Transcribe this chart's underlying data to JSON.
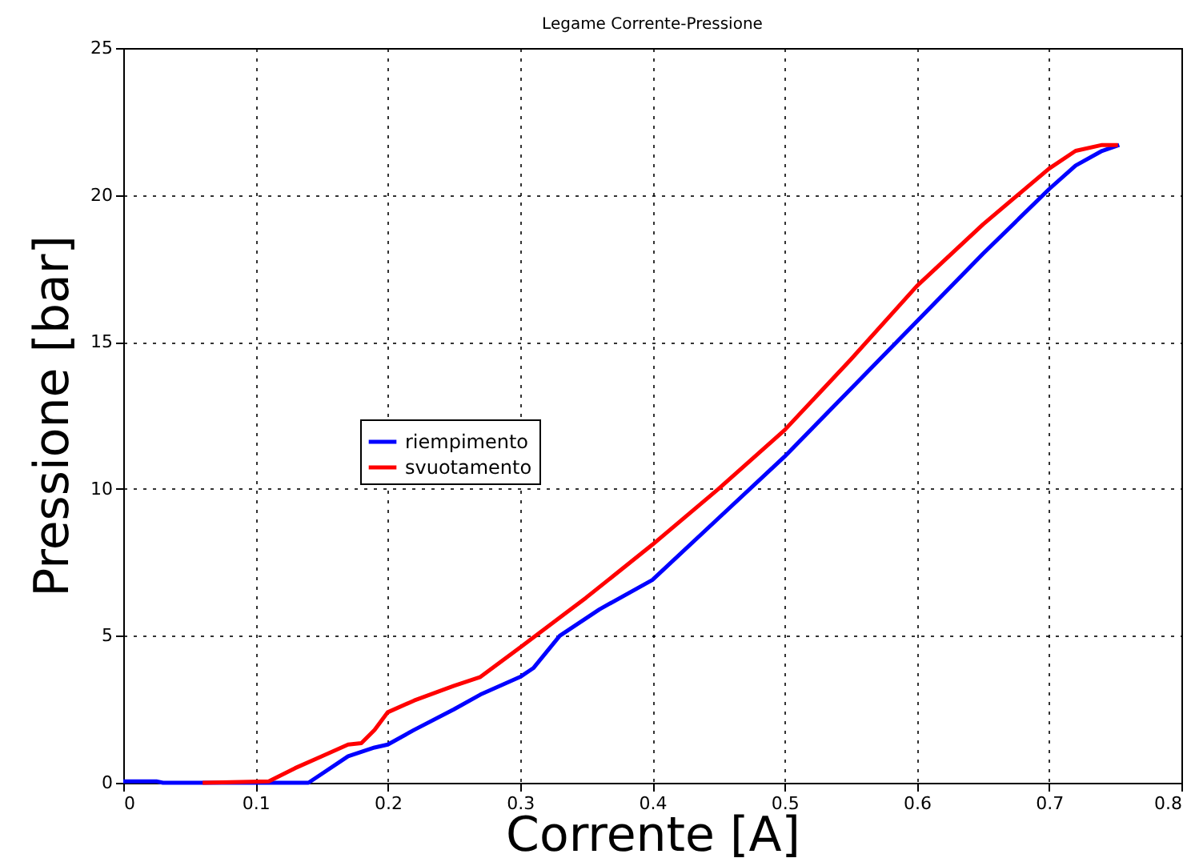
{
  "chart_data": {
    "type": "line",
    "title": "Legame Corrente-Pressione",
    "xlabel": "Corrente [A]",
    "ylabel": "Pressione [bar]",
    "xlim": [
      0,
      0.8
    ],
    "xticks": [
      0,
      0.1,
      0.2,
      0.3,
      0.4,
      0.5,
      0.6,
      0.7,
      0.8
    ],
    "ylim": [
      0,
      25
    ],
    "yticks": [
      0,
      5,
      10,
      15,
      20,
      25
    ],
    "grid": true,
    "legend": "left",
    "line_style": "solid",
    "marker": "none",
    "series": [
      {
        "name": "riempimento",
        "color": "#0000ff",
        "x": [
          0,
          0.025,
          0.03,
          0.14,
          0.15,
          0.17,
          0.19,
          0.2,
          0.22,
          0.25,
          0.27,
          0.3,
          0.31,
          0.33,
          0.36,
          0.4,
          0.45,
          0.5,
          0.55,
          0.6,
          0.65,
          0.7,
          0.72,
          0.74,
          0.753
        ],
        "values": [
          0.05,
          0.05,
          0,
          0,
          0.3,
          0.9,
          1.2,
          1.3,
          1.8,
          2.5,
          3.0,
          3.6,
          3.9,
          5.0,
          5.9,
          6.9,
          9.0,
          11.1,
          13.4,
          15.7,
          18.0,
          20.2,
          21.0,
          21.5,
          21.7
        ]
      },
      {
        "name": "svuotamento",
        "color": "#ff0000",
        "x": [
          0.06,
          0.11,
          0.13,
          0.15,
          0.17,
          0.18,
          0.19,
          0.2,
          0.22,
          0.25,
          0.27,
          0.3,
          0.35,
          0.4,
          0.45,
          0.5,
          0.55,
          0.6,
          0.65,
          0.7,
          0.72,
          0.74,
          0.752
        ],
        "values": [
          0,
          0.05,
          0.5,
          0.9,
          1.3,
          1.35,
          1.8,
          2.4,
          2.8,
          3.3,
          3.6,
          4.6,
          6.3,
          8.1,
          10.0,
          12.0,
          14.4,
          16.9,
          19.0,
          20.9,
          21.5,
          21.7,
          21.7
        ]
      }
    ]
  }
}
